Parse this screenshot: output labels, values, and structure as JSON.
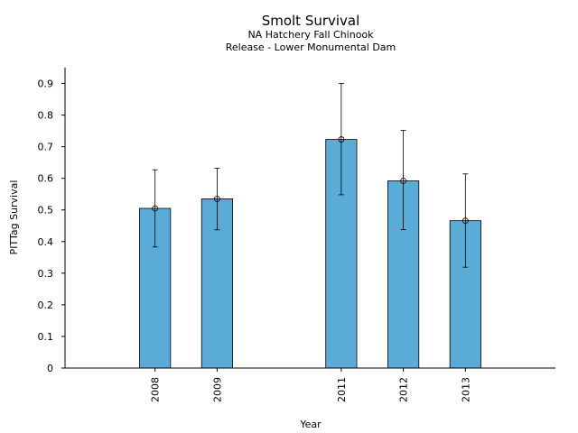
{
  "chart_data": {
    "type": "bar",
    "title": "Smolt Survival",
    "subtitle_lines": [
      "NA Hatchery Fall Chinook",
      "Release - Lower Monumental Dam"
    ],
    "xlabel": "Year",
    "ylabel": "PITTag Survival",
    "x": [
      2008,
      2009,
      2011,
      2012,
      2013
    ],
    "categories": [
      "2008",
      "2009",
      "2011",
      "2012",
      "2013"
    ],
    "values": [
      0.505,
      0.535,
      0.723,
      0.592,
      0.466
    ],
    "error_low": [
      0.383,
      0.437,
      0.548,
      0.438,
      0.319
    ],
    "error_high": [
      0.627,
      0.632,
      0.9,
      0.752,
      0.614
    ],
    "xlim": [
      2006.55,
      2014.45
    ],
    "ylim": [
      0,
      0.95
    ],
    "yticks": [
      "0",
      "0.1",
      "0.2",
      "0.3",
      "0.4",
      "0.5",
      "0.6",
      "0.7",
      "0.8",
      "0.9"
    ],
    "bar_color": "#5aabd6",
    "grid": false
  }
}
